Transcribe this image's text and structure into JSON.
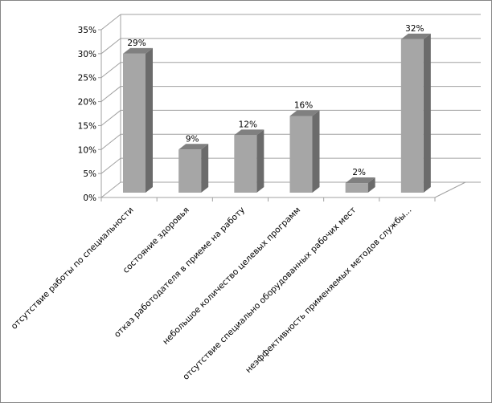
{
  "chart_data": {
    "type": "bar",
    "style": "3d-column",
    "categories": [
      "отсутствие работы по специальности",
      "состояние здоровья",
      "отказ работодателя в приеме на работу",
      "небольшое количество целевых программ",
      "отсутствие специально оборудованных рабочих мест",
      "неэффективность применяемых методов службы..."
    ],
    "values": [
      29,
      9,
      12,
      16,
      2,
      32
    ],
    "data_labels": [
      "29%",
      "9%",
      "12%",
      "16%",
      "2%",
      "32%"
    ],
    "y_ticks": [
      "0%",
      "5%",
      "10%",
      "15%",
      "20%",
      "25%",
      "30%",
      "35%"
    ],
    "ylim": [
      0,
      35
    ],
    "grid": true,
    "legend": "none",
    "colors": {
      "bar_front": "#a6a6a6",
      "bar_side": "#6b6b6b",
      "bar_top": "#808080",
      "grid": "#a0a0a0",
      "border": "#868686"
    }
  }
}
